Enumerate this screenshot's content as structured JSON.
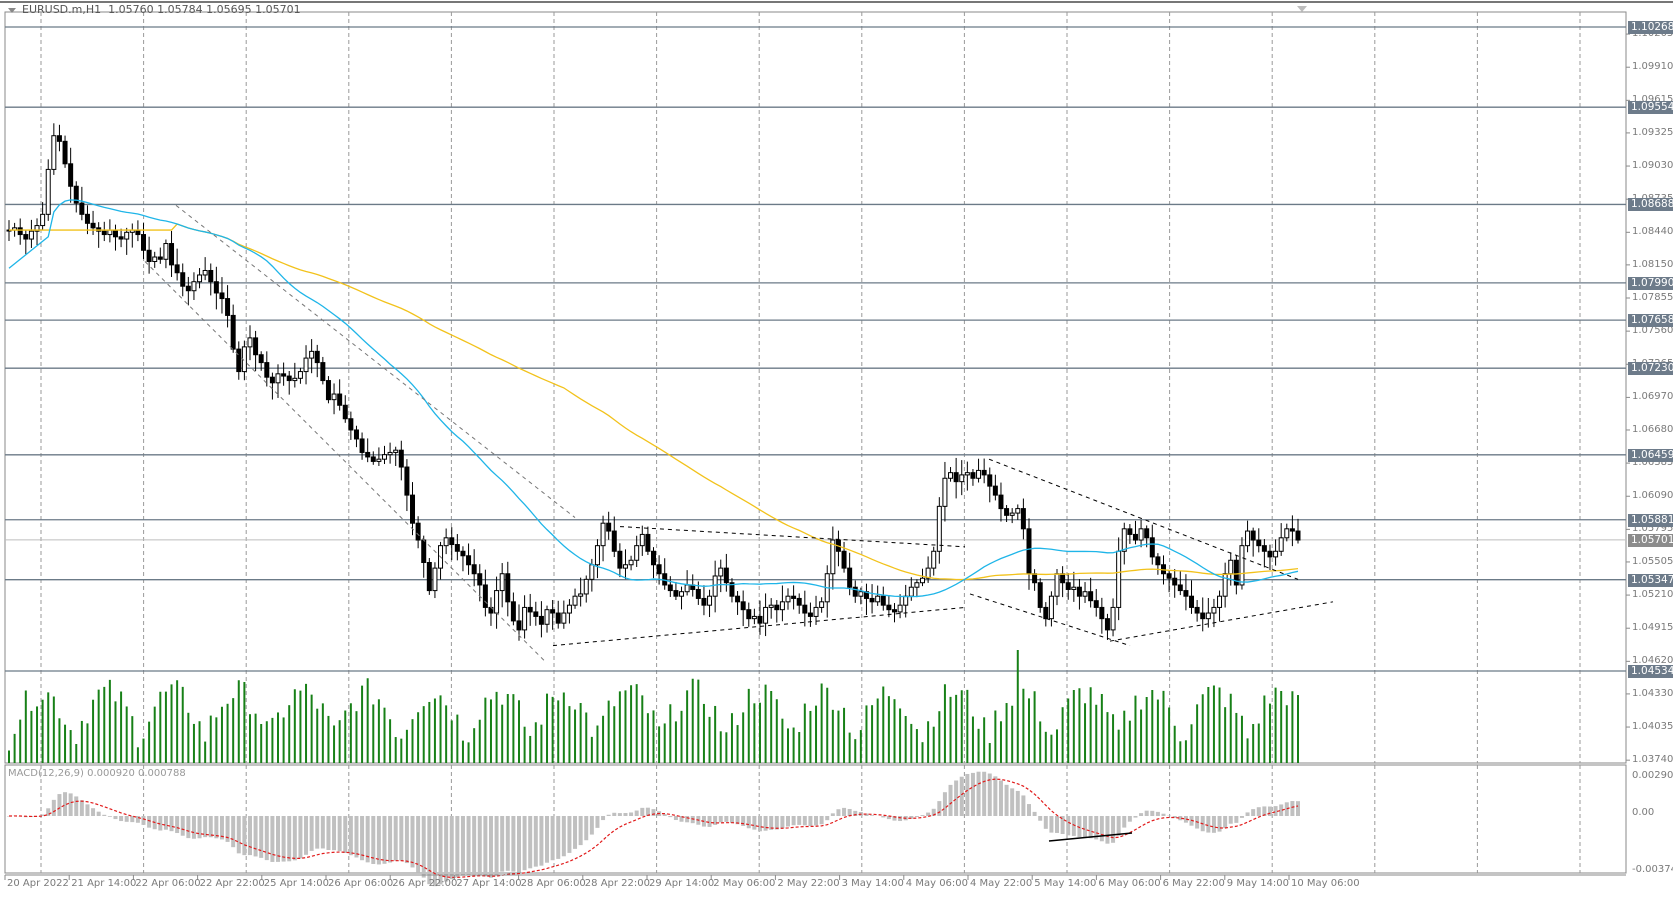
{
  "header": {
    "symbol": "EURUSD.m,H1",
    "ohlc": "1.05760 1.05784 1.05695 1.05701"
  },
  "macd": {
    "label": "MACD(12,26,9) 0.000920 0.000788",
    "axis_top": "0.002909",
    "axis_zero": "0.00",
    "axis_bottom": "-0.00374"
  },
  "colors": {
    "bull_body": "#ffffff",
    "bear_body": "#000000",
    "candle_outline": "#000000",
    "ma_fast": "#1fb5e8",
    "ma_slow": "#f2c21b",
    "volume": "#178017",
    "macd_hist": "#c0c0c0",
    "macd_signal": "#e11a1a",
    "level_line": "#6b7a87",
    "grid": "#9a9a9a",
    "axis_tag_bg": "#6d7b8a"
  },
  "price_axis": {
    "ticks": [
      "1.10205",
      "1.09910",
      "1.09615",
      "1.09325",
      "1.09030",
      "1.08735",
      "1.08440",
      "1.08150",
      "1.07855",
      "1.07560",
      "1.07265",
      "1.06970",
      "1.06680",
      "1.06385",
      "1.06090",
      "1.05795",
      "1.05505",
      "1.05210",
      "1.04915",
      "1.04620",
      "1.04330",
      "1.04035",
      "1.03740"
    ],
    "tick_values": [
      1.10205,
      1.0991,
      1.09615,
      1.09325,
      1.0903,
      1.08735,
      1.0844,
      1.0815,
      1.07855,
      1.0756,
      1.07265,
      1.0697,
      1.0668,
      1.06385,
      1.0609,
      1.05795,
      1.05505,
      1.0521,
      1.04915,
      1.0462,
      1.0433,
      1.04035,
      1.0374
    ]
  },
  "levels": [
    {
      "label": "1.10268",
      "value": 1.10268
    },
    {
      "label": "1.09554",
      "value": 1.09554
    },
    {
      "label": "1.08688",
      "value": 1.08688
    },
    {
      "label": "1.07990",
      "value": 1.0799
    },
    {
      "label": "1.07658",
      "value": 1.07658
    },
    {
      "label": "1.07230",
      "value": 1.0723
    },
    {
      "label": "1.06459",
      "value": 1.06459
    },
    {
      "label": "1.05881",
      "value": 1.05881
    },
    {
      "label": "1.05347",
      "value": 1.05347
    },
    {
      "label": "1.04534",
      "value": 1.04534
    }
  ],
  "current_price": {
    "label": "1.05701",
    "value": 1.05701
  },
  "time_axis": [
    "20 Apr 2022",
    "21 Apr 14:00",
    "22 Apr 06:00",
    "22 Apr 22:00",
    "25 Apr 14:00",
    "26 Apr 06:00",
    "26 Apr 22:00",
    "27 Apr 14:00",
    "28 Apr 06:00",
    "28 Apr 22:00",
    "29 Apr 14:00",
    "2 May 06:00",
    "2 May 22:00",
    "3 May 14:00",
    "4 May 06:00",
    "4 May 22:00",
    "5 May 14:00",
    "6 May 06:00",
    "6 May 22:00",
    "9 May 14:00",
    "10 May 06:00"
  ],
  "chart_data": {
    "type": "candlestick",
    "title": "EURUSD.m,H1",
    "timeframe": "H1",
    "ylim": [
      1.0374,
      1.1031
    ],
    "last_bar": {
      "open": 1.0576,
      "high": 1.05784,
      "low": 1.05695,
      "close": 1.05701
    },
    "close_path": [
      1.0846,
      1.0848,
      1.0842,
      1.0838,
      1.0845,
      1.085,
      1.086,
      1.09,
      1.093,
      1.0925,
      1.0905,
      1.0885,
      1.087,
      1.086,
      1.0852,
      1.0848,
      1.0845,
      1.0842,
      1.0846,
      1.084,
      1.0838,
      1.0844,
      1.0846,
      1.0842,
      1.0828,
      1.0818,
      1.0822,
      1.082,
      1.0834,
      1.0815,
      1.0808,
      1.0796,
      1.0792,
      1.08,
      1.0806,
      1.081,
      1.08,
      1.079,
      1.0785,
      1.077,
      1.074,
      1.072,
      1.0742,
      1.075,
      1.0735,
      1.0728,
      1.0715,
      1.071,
      1.0718,
      1.0716,
      1.0712,
      1.0714,
      1.072,
      1.0732,
      1.0738,
      1.0728,
      1.0712,
      1.0695,
      1.07,
      1.069,
      1.0678,
      1.0668,
      1.066,
      1.0648,
      1.0644,
      1.064,
      1.0642,
      1.0646,
      1.0648,
      1.065,
      1.0635,
      1.061,
      1.0585,
      1.057,
      1.055,
      1.0525,
      1.0545,
      1.0565,
      1.0572,
      1.0566,
      1.056,
      1.0556,
      1.0548,
      1.054,
      1.053,
      1.051,
      1.0505,
      1.0525,
      1.054,
      1.0515,
      1.0498,
      1.049,
      1.051,
      1.0506,
      1.0502,
      1.0495,
      1.0508,
      1.0505,
      1.0496,
      1.0505,
      1.0512,
      1.052,
      1.0522,
      1.0535,
      1.0548,
      1.0565,
      1.0585,
      1.0578,
      1.056,
      1.0545,
      1.0548,
      1.0552,
      1.0565,
      1.0575,
      1.056,
      1.0548,
      1.054,
      1.053,
      1.0525,
      1.052,
      1.0524,
      1.053,
      1.0526,
      1.0518,
      1.0512,
      1.052,
      1.0538,
      1.0545,
      1.0532,
      1.052,
      1.0515,
      1.0508,
      1.05,
      1.0502,
      1.0496,
      1.051,
      1.0512,
      1.0508,
      1.0515,
      1.052,
      1.0518,
      1.0512,
      1.0505,
      1.0502,
      1.051,
      1.0515,
      1.054,
      1.057,
      1.056,
      1.0545,
      1.0528,
      1.052,
      1.0524,
      1.0518,
      1.0515,
      1.052,
      1.0512,
      1.0508,
      1.0506,
      1.0512,
      1.052,
      1.0528,
      1.0532,
      1.0536,
      1.0545,
      1.056,
      1.06,
      1.0625,
      1.063,
      1.0622,
      1.0628,
      1.063,
      1.0625,
      1.0632,
      1.0628,
      1.0618,
      1.061,
      1.0598,
      1.0592,
      1.0594,
      1.0598,
      1.058,
      1.054,
      1.0532,
      1.051,
      1.05,
      1.052,
      1.054,
      1.0532,
      1.0526,
      1.0528,
      1.052,
      1.0524,
      1.0516,
      1.051,
      1.05,
      1.049,
      1.051,
      1.056,
      1.058,
      1.0575,
      1.057,
      1.058,
      1.0572,
      1.0555,
      1.0548,
      1.054,
      1.0536,
      1.053,
      1.0525,
      1.052,
      1.051,
      1.0505,
      1.05,
      1.0505,
      1.051,
      1.052,
      1.054,
      1.0552,
      1.053,
      1.0565,
      1.0578,
      1.057,
      1.0565,
      1.056,
      1.0555,
      1.056,
      1.0572,
      1.058,
      1.0578,
      1.057
    ],
    "indicators": [
      {
        "name": "Moving Average (fast)",
        "color": "#1fb5e8"
      },
      {
        "name": "Moving Average (slow)",
        "color": "#f2c21b"
      },
      {
        "name": "Volumes",
        "color": "#178017"
      },
      {
        "name": "MACD(12,26,9)",
        "main": 0.00092,
        "signal": 0.000788
      }
    ],
    "horizontal_levels": [
      1.10268,
      1.09554,
      1.08688,
      1.0799,
      1.07658,
      1.0723,
      1.06459,
      1.05881,
      1.05347,
      1.04534
    ],
    "annotations": [
      "descending channel (dashed) 22 Apr–28 Apr",
      "rectangle/triangle consolidation 28 Apr–4 May (dashed)",
      "descending wedge 4 May–6 May (dashed)",
      "rising support line 6 May–10 May (dashed)",
      "MACD divergence line 5 May"
    ]
  }
}
